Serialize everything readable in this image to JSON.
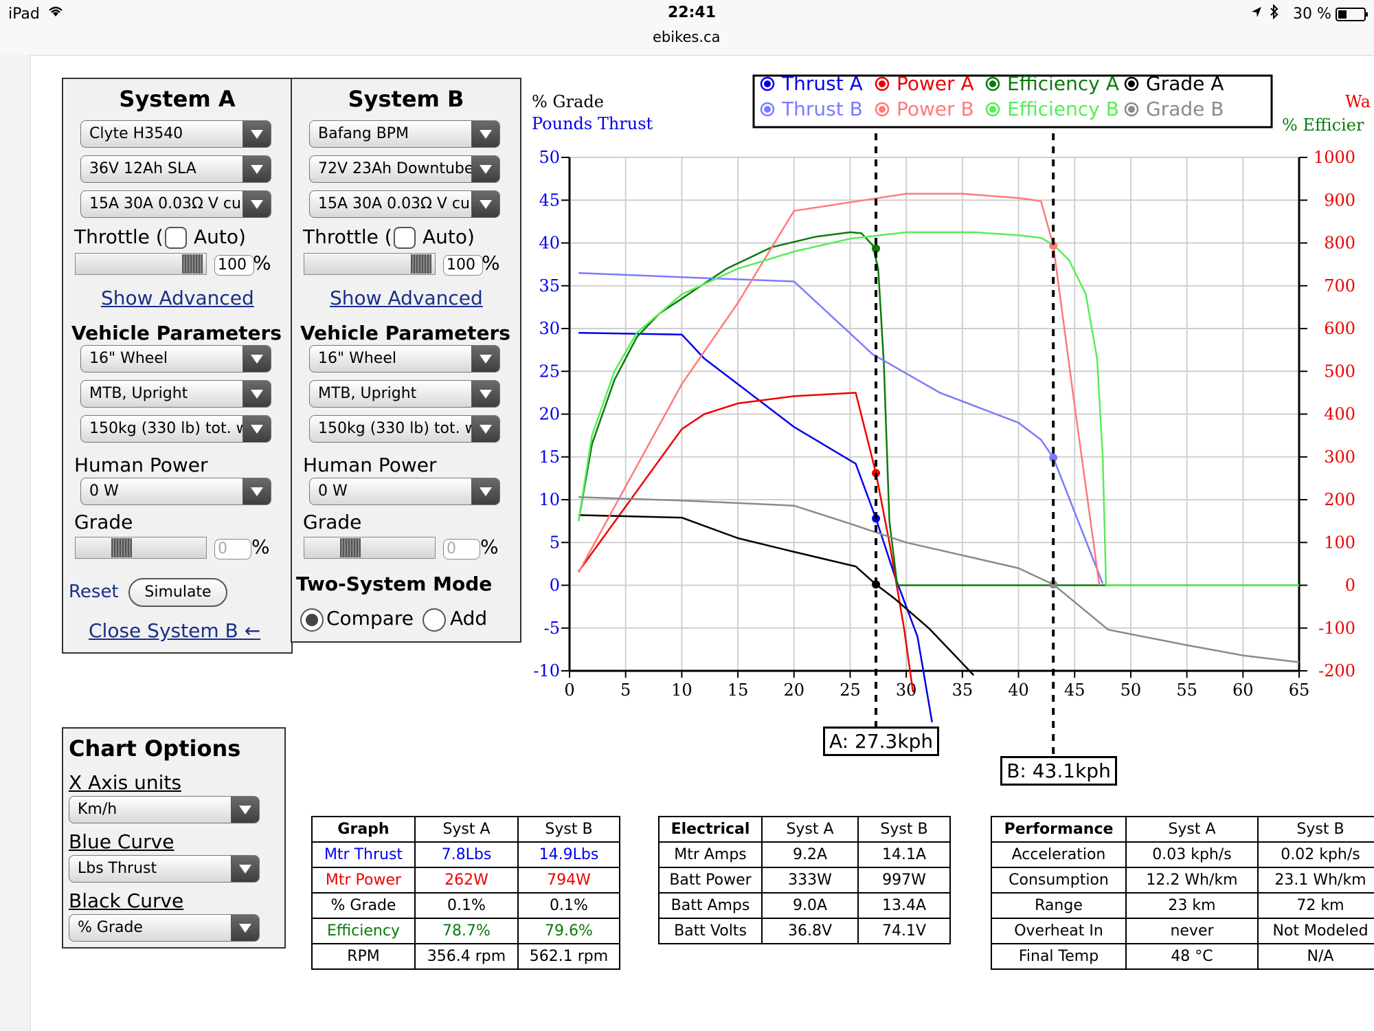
{
  "status_bar": {
    "device": "iPad",
    "time": "22:41",
    "url": "ebikes.ca",
    "battery": "30 %"
  },
  "system_a": {
    "title": "System A",
    "motor": "Clyte H3540",
    "battery": "36V 12Ah SLA",
    "controller": "15A 30A 0.03Ω V cu",
    "throttle_label": "Throttle (",
    "auto_label": "Auto)",
    "throttle_value": "100",
    "percent": "%",
    "show_advanced": "Show Advanced",
    "vehicle_params_title": "Vehicle Parameters",
    "wheel": "16\"  Wheel",
    "posture": "MTB, Upright",
    "weight": "150kg (330 lb) tot. w",
    "human_power_label": "Human Power",
    "human_power": "0 W",
    "grade_label": "Grade",
    "grade_value": "0",
    "reset": "Reset",
    "simulate": "Simulate",
    "close_b": "Close System B ←"
  },
  "system_b": {
    "title": "System B",
    "motor": "Bafang BPM",
    "battery": "72V 23Ah Downtube",
    "controller": "15A 30A 0.03Ω V cu",
    "throttle_label": "Throttle (",
    "auto_label": "Auto)",
    "throttle_value": "100",
    "percent": "%",
    "show_advanced": "Show Advanced",
    "vehicle_params_title": "Vehicle Parameters",
    "wheel": "16\"  Wheel",
    "posture": "MTB, Upright",
    "weight": "150kg (330 lb) tot. w",
    "human_power_label": "Human Power",
    "human_power": "0 W",
    "grade_label": "Grade",
    "grade_value": "0",
    "two_system_mode": "Two-System Mode",
    "compare": "Compare",
    "add": "Add"
  },
  "chart_options": {
    "title": "Chart Options",
    "x_axis_label": "X Axis units",
    "x_axis_value": "Km/h",
    "blue_curve_label": "Blue Curve",
    "blue_curve_value": "Lbs Thrust",
    "black_curve_label": "Black Curve",
    "black_curve_value": "% Grade"
  },
  "colors": {
    "thrust_a": "#0000ee",
    "thrust_b": "#7a7aff",
    "power_a": "#ee0000",
    "power_b": "#ff7a7a",
    "eff_a": "#0a7a0a",
    "eff_b": "#55ee55",
    "grade_a": "#000000",
    "grade_b": "#8a8a8a"
  },
  "chart_data": {
    "type": "line",
    "left_axis_titles": [
      "% Grade",
      "Pounds Thrust"
    ],
    "right_axis_titles": [
      "Wa",
      "% Efficier"
    ],
    "xlim": [
      0,
      65
    ],
    "ylim_left": [
      -10,
      50
    ],
    "ylim_right": [
      -200,
      1000
    ],
    "x_ticks": [
      0,
      5,
      10,
      15,
      20,
      25,
      30,
      35,
      40,
      45,
      50,
      55,
      60,
      65
    ],
    "y_left_ticks": [
      50,
      45,
      40,
      35,
      30,
      25,
      20,
      15,
      10,
      5,
      0,
      -5,
      -10
    ],
    "y_right_ticks": [
      1000,
      900,
      800,
      700,
      600,
      500,
      400,
      300,
      200,
      100,
      0,
      -100,
      -200
    ],
    "grid": true,
    "legend": [
      "Thrust A",
      "Power A",
      "Efficiency A",
      "Grade A",
      "Thrust B",
      "Power B",
      "Efficiency B",
      "Grade B"
    ],
    "series": [
      {
        "name": "Thrust A",
        "axis": "left",
        "color": "#0000ee",
        "points": [
          [
            0.8,
            29.5
          ],
          [
            10,
            29.3
          ],
          [
            12,
            26.5
          ],
          [
            15,
            23.5
          ],
          [
            20,
            18.5
          ],
          [
            25.5,
            14.2
          ],
          [
            27.3,
            7.8
          ],
          [
            29,
            1
          ],
          [
            31,
            -6
          ],
          [
            32.3,
            -16
          ]
        ]
      },
      {
        "name": "Power A",
        "axis": "right",
        "color": "#ee0000",
        "points": [
          [
            0.8,
            32
          ],
          [
            10,
            365
          ],
          [
            12,
            400
          ],
          [
            15,
            425
          ],
          [
            20,
            442
          ],
          [
            25.5,
            450
          ],
          [
            27.3,
            262
          ],
          [
            28.5,
            100
          ],
          [
            29.8,
            -100
          ],
          [
            30.6,
            -250
          ]
        ]
      },
      {
        "name": "Efficiency A",
        "axis": "right",
        "color": "#0a7a0a",
        "points": [
          [
            0.8,
            150
          ],
          [
            2,
            330
          ],
          [
            4,
            480
          ],
          [
            6,
            580
          ],
          [
            8,
            635
          ],
          [
            10,
            670
          ],
          [
            14,
            740
          ],
          [
            18,
            790
          ],
          [
            22,
            815
          ],
          [
            25,
            825
          ],
          [
            26,
            823
          ],
          [
            27,
            795
          ],
          [
            27.5,
            740
          ],
          [
            28,
            520
          ],
          [
            28.5,
            150
          ],
          [
            29.2,
            0
          ],
          [
            65,
            0
          ]
        ]
      },
      {
        "name": "Grade A",
        "axis": "left",
        "color": "#000000",
        "points": [
          [
            0.8,
            8.2
          ],
          [
            10,
            7.9
          ],
          [
            15,
            5.5
          ],
          [
            20,
            3.9
          ],
          [
            25.5,
            2.2
          ],
          [
            27.3,
            0.1
          ],
          [
            29,
            -1.6
          ],
          [
            32,
            -5
          ],
          [
            36,
            -10.5
          ]
        ]
      },
      {
        "name": "Thrust B",
        "axis": "left",
        "color": "#7a7aff",
        "points": [
          [
            0.8,
            36.5
          ],
          [
            10,
            36
          ],
          [
            20,
            35.5
          ],
          [
            27,
            27
          ],
          [
            33,
            22.5
          ],
          [
            40,
            19
          ],
          [
            42,
            17
          ],
          [
            43.1,
            14.9
          ],
          [
            47.5,
            0.2
          ]
        ]
      },
      {
        "name": "Power B",
        "axis": "right",
        "color": "#ff7a7a",
        "points": [
          [
            0.8,
            30
          ],
          [
            10,
            470
          ],
          [
            15,
            660
          ],
          [
            20,
            875
          ],
          [
            30,
            915
          ],
          [
            35,
            915
          ],
          [
            40,
            905
          ],
          [
            42,
            898
          ],
          [
            43.1,
            794
          ],
          [
            45,
            420
          ],
          [
            47.2,
            0
          ]
        ]
      },
      {
        "name": "Efficiency B",
        "axis": "right",
        "color": "#55ee55",
        "points": [
          [
            0.8,
            150
          ],
          [
            2,
            350
          ],
          [
            4,
            500
          ],
          [
            6,
            590
          ],
          [
            10,
            680
          ],
          [
            15,
            740
          ],
          [
            20,
            780
          ],
          [
            25,
            810
          ],
          [
            30,
            825
          ],
          [
            36,
            825
          ],
          [
            40,
            818
          ],
          [
            42,
            812
          ],
          [
            43.1,
            796
          ],
          [
            44.5,
            760
          ],
          [
            46,
            680
          ],
          [
            47,
            530
          ],
          [
            47.5,
            300
          ],
          [
            47.8,
            0
          ],
          [
            65,
            0
          ]
        ]
      },
      {
        "name": "Grade B",
        "axis": "left",
        "color": "#8a8a8a",
        "points": [
          [
            0.8,
            10.3
          ],
          [
            10,
            9.9
          ],
          [
            20,
            9.3
          ],
          [
            25,
            7.2
          ],
          [
            30,
            5
          ],
          [
            35,
            3.5
          ],
          [
            40,
            2
          ],
          [
            43.1,
            0.1
          ],
          [
            48,
            -5.2
          ],
          [
            55,
            -7
          ],
          [
            60,
            -8.2
          ],
          [
            65,
            -9
          ]
        ]
      }
    ],
    "markers": [
      {
        "series": "Efficiency A",
        "x": 27.3,
        "y": 787
      },
      {
        "series": "Power A",
        "x": 27.3,
        "y": 262
      },
      {
        "series": "Thrust A",
        "x": 27.3,
        "y": 7.8
      },
      {
        "series": "Grade A",
        "x": 27.3,
        "y": 0.1
      },
      {
        "series": "Power B",
        "x": 43.1,
        "y": 794
      },
      {
        "series": "Thrust B",
        "x": 43.1,
        "y": 14.9
      },
      {
        "series": "Grade B",
        "x": 43.1,
        "y": 0.1
      }
    ],
    "speed_lines": [
      {
        "x": 27.3,
        "label": "A: 27.3kph"
      },
      {
        "x": 43.1,
        "label": "B: 43.1kph"
      }
    ]
  },
  "graph_table": {
    "headers": [
      "Graph",
      "Syst A",
      "Syst B"
    ],
    "rows": [
      {
        "label": "Mtr Thrust",
        "a": "7.8Lbs",
        "b": "14.9Lbs",
        "color": "#0000ee"
      },
      {
        "label": "Mtr Power",
        "a": "262W",
        "b": "794W",
        "color": "#ee0000"
      },
      {
        "label": "% Grade",
        "a": "0.1%",
        "b": "0.1%",
        "color": "#000000"
      },
      {
        "label": "Efficiency",
        "a": "78.7%",
        "b": "79.6%",
        "color": "#0a7a0a"
      },
      {
        "label": "RPM",
        "a": "356.4 rpm",
        "b": "562.1 rpm",
        "color": "#000000"
      }
    ]
  },
  "electrical_table": {
    "headers": [
      "Electrical",
      "Syst A",
      "Syst B"
    ],
    "rows": [
      {
        "label": "Mtr Amps",
        "a": "9.2A",
        "b": "14.1A"
      },
      {
        "label": "Batt Power",
        "a": "333W",
        "b": "997W"
      },
      {
        "label": "Batt Amps",
        "a": "9.0A",
        "b": "13.4A"
      },
      {
        "label": "Batt Volts",
        "a": "36.8V",
        "b": "74.1V"
      }
    ]
  },
  "performance_table": {
    "headers": [
      "Performance",
      "Syst A",
      "Syst B"
    ],
    "rows": [
      {
        "label": "Acceleration",
        "a": "0.03 kph/s",
        "b": "0.02 kph/s"
      },
      {
        "label": "Consumption",
        "a": "12.2 Wh/km",
        "b": "23.1 Wh/km"
      },
      {
        "label": "Range",
        "a": "23 km",
        "b": "72 km"
      },
      {
        "label": "Overheat In",
        "a": "never",
        "b": "Not Modeled"
      },
      {
        "label": "Final Temp",
        "a": "48 °C",
        "b": "N/A"
      }
    ]
  }
}
